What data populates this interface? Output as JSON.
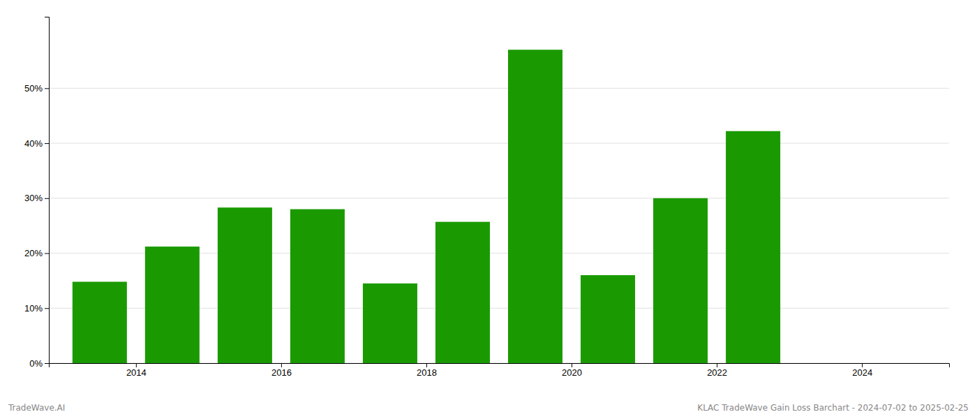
{
  "chart_data": {
    "type": "bar",
    "x": [
      2013.5,
      2014.5,
      2015.5,
      2016.5,
      2017.5,
      2018.5,
      2019.5,
      2020.5,
      2021.5,
      2022.5,
      2023.5
    ],
    "values": [
      0.148,
      0.212,
      0.283,
      0.28,
      0.145,
      0.257,
      0.57,
      0.16,
      0.3,
      0.422,
      0.0
    ],
    "color": "#1a9a00",
    "xlim": [
      2012.8,
      2025.2
    ],
    "xticks": [
      2014,
      2016,
      2018,
      2020,
      2022,
      2024
    ],
    "ylim": [
      0,
      0.63
    ],
    "yticks": [
      {
        "value": 0.0,
        "label": "0%"
      },
      {
        "value": 0.1,
        "label": "10%"
      },
      {
        "value": 0.2,
        "label": "20%"
      },
      {
        "value": 0.3,
        "label": "30%"
      },
      {
        "value": 0.4,
        "label": "40%"
      },
      {
        "value": 0.5,
        "label": "50%"
      }
    ],
    "grid": true,
    "annotations": [
      "TradeWave.AI",
      "KLAC TradeWave Gain Loss Barchart - 2024-07-02 to 2025-02-25"
    ]
  }
}
